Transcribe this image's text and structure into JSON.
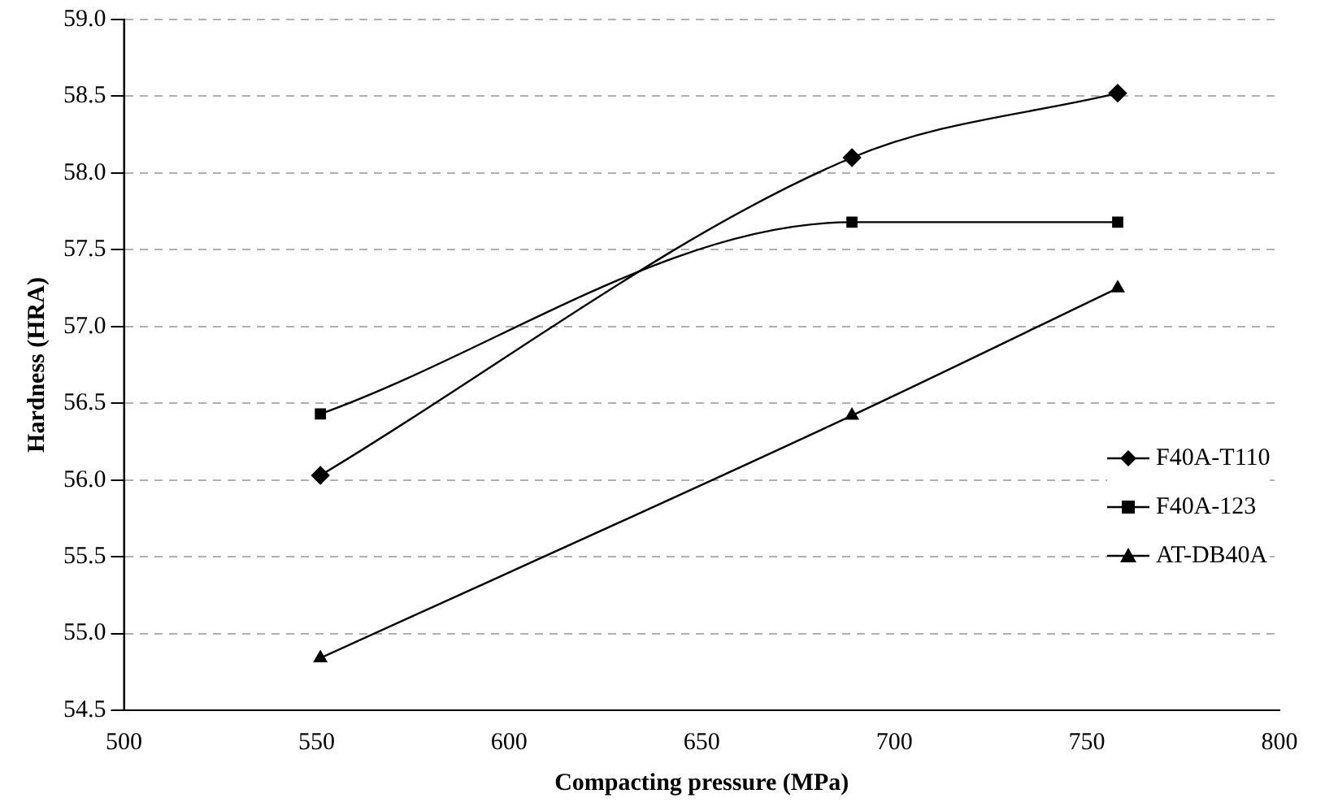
{
  "chart_data": {
    "type": "line",
    "xlabel": "Compacting pressure (MPa)",
    "ylabel": "Hardness (HRA)",
    "xlim": [
      500,
      800
    ],
    "xticks": [
      500,
      550,
      600,
      650,
      700,
      750,
      800
    ],
    "ylim": [
      54.5,
      59.0
    ],
    "yticks": [
      {
        "value": 54.5,
        "label": "54.5"
      },
      {
        "value": 55,
        "label": "55.0"
      },
      {
        "value": 55.5,
        "label": "55.5"
      },
      {
        "value": 56,
        "label": "56.0"
      },
      {
        "value": 56.5,
        "label": "56.5"
      },
      {
        "value": 57,
        "label": "57.0"
      },
      {
        "value": 57.5,
        "label": "57.5"
      },
      {
        "value": 58,
        "label": "58.0"
      },
      {
        "value": 58.5,
        "label": "58.5"
      },
      {
        "value": 59,
        "label": "59.0"
      }
    ],
    "grid": "y",
    "legend": "right",
    "line_style": "solid",
    "series": [
      {
        "name": "F40A-T110",
        "color": "#000000",
        "marker": "diamond",
        "x": [
          551,
          689,
          758
        ],
        "values": [
          56.03,
          58.1,
          58.52
        ]
      },
      {
        "name": "F40A-123",
        "color": "#000000",
        "marker": "square",
        "x": [
          551,
          689,
          758
        ],
        "values": [
          56.43,
          57.68,
          57.68
        ]
      },
      {
        "name": "AT-DB40A",
        "color": "#000000",
        "marker": "triangle",
        "x": [
          551,
          689,
          758
        ],
        "values": [
          54.84,
          56.42,
          57.25
        ]
      }
    ]
  }
}
